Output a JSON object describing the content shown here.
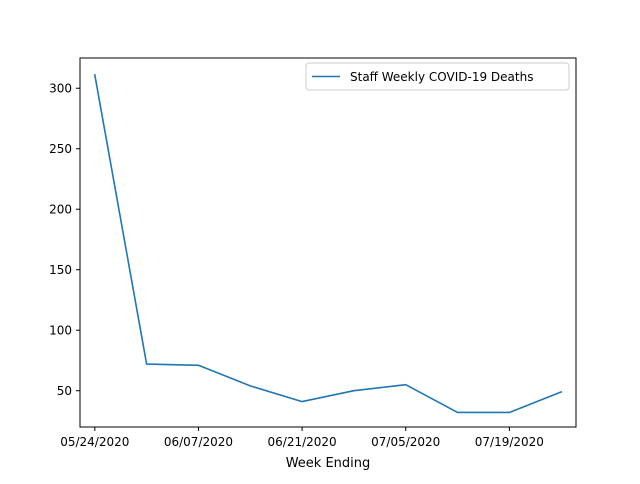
{
  "chart_data": {
    "type": "line",
    "title": "",
    "xlabel": "Week Ending",
    "ylabel": "",
    "x": [
      "05/24/2020",
      "05/31/2020",
      "06/07/2020",
      "06/14/2020",
      "06/21/2020",
      "06/28/2020",
      "07/05/2020",
      "07/12/2020",
      "07/19/2020",
      "07/26/2020"
    ],
    "xticks": [
      "05/24/2020",
      "06/07/2020",
      "06/21/2020",
      "07/05/2020",
      "07/19/2020"
    ],
    "yticks": [
      50,
      100,
      150,
      200,
      250,
      300
    ],
    "xlim": [
      "05/22/2020",
      "07/28/2020"
    ],
    "ylim": [
      20,
      325
    ],
    "grid": false,
    "legend_position": "top-right",
    "series": [
      {
        "name": "Staff Weekly COVID-19 Deaths",
        "color": "#1f77b4",
        "values": [
          311,
          72,
          71,
          54,
          41,
          50,
          55,
          32,
          32,
          49
        ]
      }
    ]
  }
}
